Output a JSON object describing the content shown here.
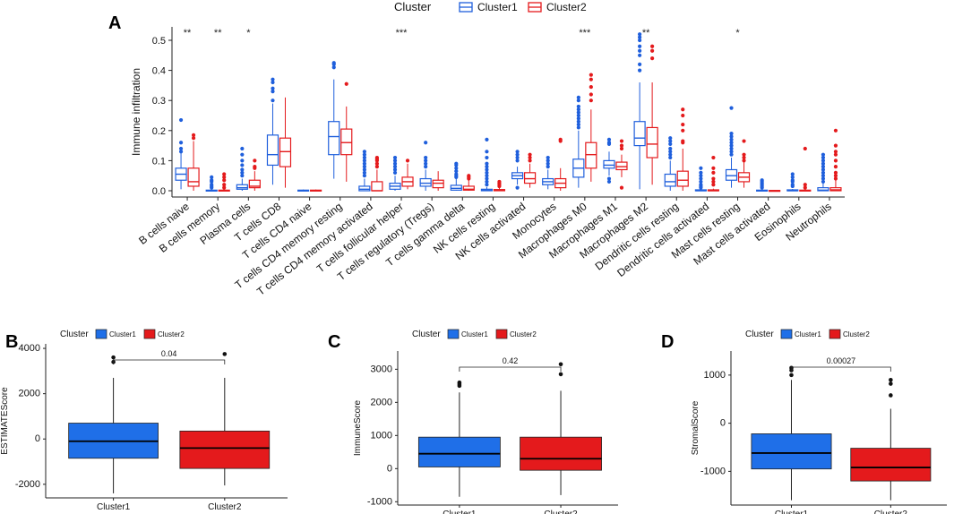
{
  "chart_data": [
    {
      "panel": "A",
      "type": "boxplot",
      "ylabel": "Immune infiltration",
      "ylim": [
        0,
        0.5
      ],
      "yticks": [
        "0.0",
        "0.1",
        "0.2",
        "0.3",
        "0.4",
        "0.5"
      ],
      "legend": {
        "title": "Cluster",
        "placement": "top",
        "entries": [
          "Cluster1",
          "Cluster2"
        ]
      },
      "colors": {
        "Cluster1": "#1f5fdc",
        "Cluster2": "#e41a1c"
      },
      "categories": [
        "B cells naive",
        "B cells memory",
        "Plasma cells",
        "T cells CD8",
        "T cells CD4 naive",
        "T cells CD4 memory resting",
        "T cells CD4 memory activated",
        "T cells follicular helper",
        "T cells regulatory (Tregs)",
        "T cells gamma delta",
        "NK cells resting",
        "NK cells activated",
        "Monocytes",
        "Macrophages M0",
        "Macrophages M1",
        "Macrophages M2",
        "Dendritic cells resting",
        "Dendritic cells activated",
        "Mast cells resting",
        "Mast cells activated",
        "Eosinophils",
        "Neutrophils"
      ],
      "significance": [
        "**",
        "**",
        "*",
        "",
        "",
        "",
        "",
        "***",
        "",
        "",
        "",
        "",
        "",
        "***",
        "",
        "**",
        "",
        "",
        "*",
        "",
        "",
        ""
      ],
      "series": [
        {
          "name": "Cluster1",
          "boxes": [
            [
              0.005,
              0.035,
              0.055,
              0.075,
              0.125
            ],
            [
              0,
              0,
              0,
              0.002,
              0.004
            ],
            [
              0,
              0.005,
              0.01,
              0.02,
              0.04
            ],
            [
              0.02,
              0.085,
              0.12,
              0.185,
              0.29
            ],
            [
              0,
              0,
              0,
              0.002,
              0.004
            ],
            [
              0.04,
              0.12,
              0.18,
              0.23,
              0.37
            ],
            [
              0,
              0,
              0.005,
              0.015,
              0.04
            ],
            [
              0,
              0.005,
              0.015,
              0.025,
              0.05
            ],
            [
              0,
              0.015,
              0.025,
              0.04,
              0.07
            ],
            [
              0,
              0.002,
              0.008,
              0.018,
              0.04
            ],
            [
              0,
              0,
              0.002,
              0.005,
              0.012
            ],
            [
              0.02,
              0.04,
              0.05,
              0.06,
              0.08
            ],
            [
              0.005,
              0.02,
              0.03,
              0.04,
              0.07
            ],
            [
              0.01,
              0.045,
              0.075,
              0.105,
              0.2
            ],
            [
              0.05,
              0.075,
              0.085,
              0.1,
              0.13
            ],
            [
              0.005,
              0.15,
              0.175,
              0.23,
              0.36
            ],
            [
              0,
              0.015,
              0.03,
              0.055,
              0.1
            ],
            [
              0,
              0,
              0,
              0.003,
              0.008
            ],
            [
              0.01,
              0.035,
              0.05,
              0.07,
              0.11
            ],
            [
              0,
              0,
              0,
              0.002,
              0.004
            ],
            [
              0,
              0,
              0,
              0.003,
              0.006
            ],
            [
              0,
              0,
              0.002,
              0.01,
              0.03
            ]
          ]
        },
        {
          "name": "Cluster2",
          "boxes": [
            [
              0,
              0.015,
              0.03,
              0.075,
              0.165
            ],
            [
              0,
              0,
              0,
              0.002,
              0.004
            ],
            [
              0,
              0.01,
              0.015,
              0.035,
              0.065
            ],
            [
              0.01,
              0.08,
              0.13,
              0.175,
              0.31
            ],
            [
              0,
              0,
              0,
              0.002,
              0.004
            ],
            [
              0.03,
              0.12,
              0.16,
              0.205,
              0.28
            ],
            [
              0,
              0,
              0,
              0.03,
              0.07
            ],
            [
              0.005,
              0.015,
              0.03,
              0.045,
              0.09
            ],
            [
              0,
              0.01,
              0.025,
              0.035,
              0.065
            ],
            [
              0,
              0.002,
              0.005,
              0.015,
              0.035
            ],
            [
              0,
              0,
              0.002,
              0.004,
              0.01
            ],
            [
              0.01,
              0.025,
              0.04,
              0.06,
              0.09
            ],
            [
              0,
              0.01,
              0.025,
              0.04,
              0.075
            ],
            [
              0.03,
              0.075,
              0.12,
              0.16,
              0.27
            ],
            [
              0.045,
              0.07,
              0.08,
              0.095,
              0.12
            ],
            [
              0.02,
              0.11,
              0.155,
              0.21,
              0.36
            ],
            [
              0,
              0.015,
              0.035,
              0.065,
              0.14
            ],
            [
              0,
              0,
              0,
              0.003,
              0.007
            ],
            [
              0.01,
              0.03,
              0.045,
              0.06,
              0.095
            ],
            [
              0,
              0,
              0,
              0.001,
              0.002
            ],
            [
              0,
              0,
              0,
              0.002,
              0.004
            ],
            [
              0,
              0,
              0.003,
              0.01,
              0.035
            ]
          ]
        }
      ],
      "outliers": [
        {
          "series": "Cluster1",
          "category": 0,
          "values": [
            0.235,
            0.16,
            0.14,
            0.13
          ]
        },
        {
          "series": "Cluster2",
          "category": 0,
          "values": [
            0.185,
            0.175
          ]
        },
        {
          "series": "Cluster1",
          "category": 1,
          "values": [
            0.045,
            0.035,
            0.03,
            0.02,
            0.015,
            0.01
          ]
        },
        {
          "series": "Cluster2",
          "category": 1,
          "values": [
            0.055,
            0.045,
            0.035,
            0.02,
            0.01
          ]
        },
        {
          "series": "Cluster1",
          "category": 2,
          "values": [
            0.14,
            0.12,
            0.1,
            0.085,
            0.07,
            0.06,
            0.05
          ]
        },
        {
          "series": "Cluster2",
          "category": 2,
          "values": [
            0.1,
            0.08,
            0.075
          ]
        },
        {
          "series": "Cluster1",
          "category": 3,
          "values": [
            0.37,
            0.36,
            0.34,
            0.33,
            0.3
          ]
        },
        {
          "series": "Cluster1",
          "category": 5,
          "values": [
            0.425,
            0.42,
            0.41
          ]
        },
        {
          "series": "Cluster2",
          "category": 5,
          "values": [
            0.355
          ]
        },
        {
          "series": "Cluster1",
          "category": 6,
          "values": [
            0.13,
            0.12,
            0.11,
            0.1,
            0.09,
            0.08,
            0.07,
            0.06,
            0.05
          ]
        },
        {
          "series": "Cluster2",
          "category": 6,
          "values": [
            0.11,
            0.105,
            0.1,
            0.09,
            0.08
          ]
        },
        {
          "series": "Cluster1",
          "category": 7,
          "values": [
            0.11,
            0.1,
            0.09,
            0.08,
            0.07,
            0.06
          ]
        },
        {
          "series": "Cluster2",
          "category": 7,
          "values": [
            0.1
          ]
        },
        {
          "series": "Cluster1",
          "category": 8,
          "values": [
            0.16,
            0.11,
            0.1,
            0.09,
            0.08
          ]
        },
        {
          "series": "Cluster1",
          "category": 9,
          "values": [
            0.09,
            0.085,
            0.075,
            0.065,
            0.055,
            0.05,
            0.045
          ]
        },
        {
          "series": "Cluster2",
          "category": 9,
          "values": [
            0.05,
            0.045,
            0.04
          ]
        },
        {
          "series": "Cluster1",
          "category": 10,
          "values": [
            0.17,
            0.13,
            0.11,
            0.09,
            0.08,
            0.07,
            0.06,
            0.05,
            0.04,
            0.03,
            0.02
          ]
        },
        {
          "series": "Cluster2",
          "category": 10,
          "values": [
            0.03,
            0.025,
            0.02,
            0.015
          ]
        },
        {
          "series": "Cluster1",
          "category": 11,
          "values": [
            0.13,
            0.12,
            0.11,
            0.1,
            0.01
          ]
        },
        {
          "series": "Cluster2",
          "category": 11,
          "values": [
            0.12,
            0.11,
            0.1
          ]
        },
        {
          "series": "Cluster1",
          "category": 12,
          "values": [
            0.11,
            0.1,
            0.09,
            0.08
          ]
        },
        {
          "series": "Cluster2",
          "category": 12,
          "values": [
            0.17,
            0.165
          ]
        },
        {
          "series": "Cluster1",
          "category": 13,
          "values": [
            0.31,
            0.3,
            0.28,
            0.27,
            0.26,
            0.25,
            0.24,
            0.23,
            0.22,
            0.21
          ]
        },
        {
          "series": "Cluster2",
          "category": 13,
          "values": [
            0.385,
            0.37,
            0.345,
            0.32,
            0.3
          ]
        },
        {
          "series": "Cluster1",
          "category": 14,
          "values": [
            0.17,
            0.16,
            0.155,
            0.04,
            0.03
          ]
        },
        {
          "series": "Cluster2",
          "category": 14,
          "values": [
            0.165,
            0.15,
            0.14,
            0.01
          ]
        },
        {
          "series": "Cluster1",
          "category": 15,
          "values": [
            0.52,
            0.51,
            0.5,
            0.48,
            0.465,
            0.45,
            0.42,
            0.4
          ]
        },
        {
          "series": "Cluster2",
          "category": 15,
          "values": [
            0.48,
            0.465,
            0.44
          ]
        },
        {
          "series": "Cluster1",
          "category": 16,
          "values": [
            0.175,
            0.165,
            0.155,
            0.14,
            0.13,
            0.12,
            0.11
          ]
        },
        {
          "series": "Cluster2",
          "category": 16,
          "values": [
            0.27,
            0.25,
            0.22,
            0.2,
            0.165,
            0.16
          ]
        },
        {
          "series": "Cluster1",
          "category": 17,
          "values": [
            0.075,
            0.06,
            0.05,
            0.04,
            0.03,
            0.02,
            0.015,
            0.01
          ]
        },
        {
          "series": "Cluster2",
          "category": 17,
          "values": [
            0.11,
            0.075,
            0.06,
            0.04,
            0.03,
            0.02
          ]
        },
        {
          "series": "Cluster1",
          "category": 18,
          "values": [
            0.275,
            0.19,
            0.18,
            0.17,
            0.16,
            0.15,
            0.14,
            0.13,
            0.12
          ]
        },
        {
          "series": "Cluster2",
          "category": 18,
          "values": [
            0.165,
            0.12,
            0.11,
            0.1
          ]
        },
        {
          "series": "Cluster1",
          "category": 19,
          "values": [
            0.035,
            0.03,
            0.025,
            0.02,
            0.015,
            0.01
          ]
        },
        {
          "series": "Cluster1",
          "category": 20,
          "values": [
            0.055,
            0.045,
            0.035,
            0.03,
            0.02,
            0.015
          ]
        },
        {
          "series": "Cluster2",
          "category": 20,
          "values": [
            0.14,
            0.02,
            0.01
          ]
        },
        {
          "series": "Cluster1",
          "category": 21,
          "values": [
            0.12,
            0.11,
            0.1,
            0.09,
            0.08,
            0.07,
            0.06,
            0.05,
            0.04,
            0.03
          ]
        },
        {
          "series": "Cluster2",
          "category": 21,
          "values": [
            0.2,
            0.15,
            0.13,
            0.12,
            0.1,
            0.08,
            0.06,
            0.05,
            0.04
          ]
        }
      ]
    },
    {
      "panel": "B",
      "type": "boxplot",
      "ylabel": "ESTIMATEScore",
      "ylim": [
        -2600,
        4200
      ],
      "yticks": [
        "-2000",
        "0",
        "2000",
        "4000"
      ],
      "legend": {
        "title": "Cluster",
        "placement": "top",
        "entries": [
          "Cluster1",
          "Cluster2"
        ]
      },
      "categories": [
        "Cluster1",
        "Cluster2"
      ],
      "pvalue": "0.04",
      "boxes": [
        [
          -2400,
          -850,
          -100,
          700,
          2700
        ],
        [
          -2050,
          -1300,
          -400,
          350,
          2700
        ]
      ],
      "outliers": [
        [
          3600,
          3400
        ],
        [
          3750
        ]
      ]
    },
    {
      "panel": "C",
      "type": "boxplot",
      "ylabel": "ImmuneScore",
      "ylim": [
        -1100,
        3550
      ],
      "yticks": [
        "-1000",
        "0",
        "1000",
        "2000",
        "3000"
      ],
      "legend": {
        "title": "Cluster",
        "placement": "top",
        "entries": [
          "Cluster1",
          "Cluster2"
        ]
      },
      "categories": [
        "Cluster1",
        "Cluster2"
      ],
      "pvalue": "0.42",
      "boxes": [
        [
          -850,
          50,
          450,
          950,
          2300
        ],
        [
          -800,
          -50,
          300,
          950,
          2350
        ]
      ],
      "outliers": [
        [
          2600,
          2550,
          2500
        ],
        [
          3150,
          2850
        ]
      ]
    },
    {
      "panel": "D",
      "type": "boxplot",
      "ylabel": "StromalScore",
      "ylim": [
        -1700,
        1500
      ],
      "yticks": [
        "-1000",
        "0",
        "1000"
      ],
      "legend": {
        "title": "Cluster",
        "placement": "top",
        "entries": [
          "Cluster1",
          "Cluster2"
        ]
      },
      "categories": [
        "Cluster1",
        "Cluster2"
      ],
      "pvalue": "0.00027",
      "boxes": [
        [
          -1600,
          -950,
          -620,
          -220,
          900
        ],
        [
          -1600,
          -1200,
          -920,
          -520,
          300
        ]
      ],
      "outliers": [
        [
          1150,
          1100,
          1000
        ],
        [
          900,
          820,
          580
        ]
      ]
    }
  ],
  "panel_labels": [
    "A",
    "B",
    "C",
    "D"
  ]
}
